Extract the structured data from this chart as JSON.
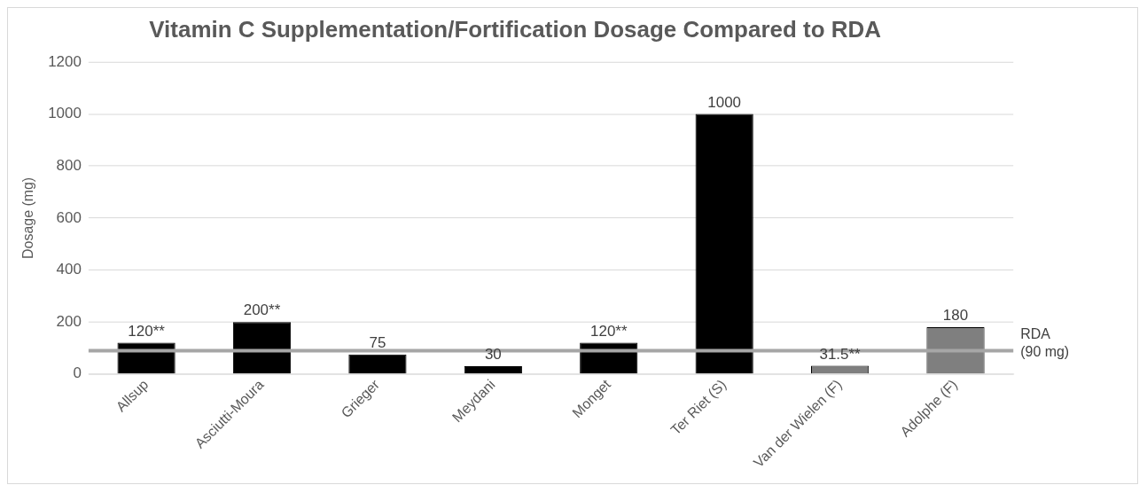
{
  "chart_data": {
    "type": "bar",
    "title": "Vitamin C Supplementation/Fortification Dosage Compared to RDA",
    "ylabel": "Dosage (mg)",
    "categories": [
      "Allsup",
      "Asciutti-Moura",
      "Grieger",
      "Meydani",
      "Monget",
      "Ter Riet (S)",
      "Van der Wielen (F)",
      "Adolphe (F)"
    ],
    "values": [
      120,
      200,
      75,
      30,
      120,
      1000,
      31.5,
      180
    ],
    "value_labels": [
      "120**",
      "200**",
      "75",
      "30",
      "120**",
      "1000",
      "31.5**",
      "180"
    ],
    "colors": [
      "#000000",
      "#000000",
      "#000000",
      "#000000",
      "#000000",
      "#000000",
      "#7f7f7f",
      "#7f7f7f"
    ],
    "ylim": [
      0,
      1200
    ],
    "yticks": [
      0,
      200,
      400,
      600,
      800,
      1000,
      1200
    ],
    "grid": "y",
    "ref_lines": [
      {
        "axis": "y",
        "value": 90,
        "label": "RDA\n(90 mg)",
        "color": "#a6a6a6"
      }
    ]
  }
}
